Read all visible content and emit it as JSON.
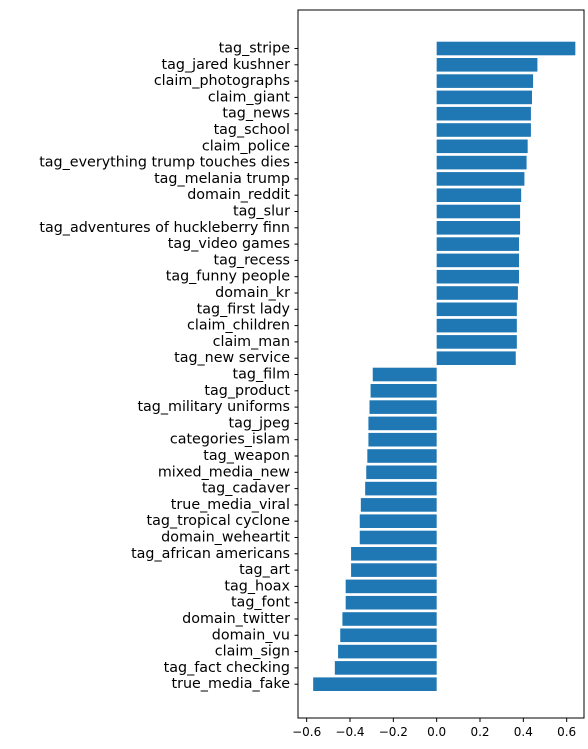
{
  "chart_data": {
    "type": "bar",
    "orientation": "horizontal",
    "title": "",
    "xlabel": "",
    "ylabel": "",
    "bar_color": "#1f77b4",
    "xlim": [
      -0.64,
      0.68
    ],
    "xticks": [
      -0.6,
      -0.4,
      -0.2,
      0.0,
      0.2,
      0.4,
      0.6
    ],
    "xtick_labels": [
      "−0.6",
      "−0.4",
      "−0.2",
      "0.0",
      "0.2",
      "0.4",
      "0.6"
    ],
    "grid": false,
    "legend": "none",
    "categories": [
      "tag_stripe",
      "tag_jared kushner",
      "claim_photographs",
      "claim_giant",
      "tag_news",
      "tag_school",
      "claim_police",
      "tag_everything trump touches dies",
      "tag_melania trump",
      "domain_reddit",
      "tag_slur",
      "tag_adventures of huckleberry finn",
      "tag_video games",
      "tag_recess",
      "tag_funny people",
      "domain_kr",
      "tag_first lady",
      "claim_children",
      "claim_man",
      "tag_new service",
      "tag_film",
      "tag_product",
      "tag_military uniforms",
      "tag_jpeg",
      "categories_islam",
      "tag_weapon",
      "mixed_media_new",
      "tag_cadaver",
      "true_media_viral",
      "tag_tropical cyclone",
      "domain_weheartit",
      "tag_african americans",
      "tag_art",
      "tag_hoax",
      "tag_font",
      "domain_twitter",
      "domain_vu",
      "claim_sign",
      "tag_fact checking",
      "true_media_fake"
    ],
    "values": [
      0.64,
      0.465,
      0.445,
      0.44,
      0.435,
      0.435,
      0.42,
      0.415,
      0.405,
      0.39,
      0.385,
      0.385,
      0.38,
      0.38,
      0.38,
      0.375,
      0.37,
      0.37,
      0.37,
      0.365,
      -0.295,
      -0.305,
      -0.31,
      -0.315,
      -0.315,
      -0.32,
      -0.325,
      -0.33,
      -0.35,
      -0.355,
      -0.355,
      -0.395,
      -0.395,
      -0.42,
      -0.42,
      -0.435,
      -0.445,
      -0.455,
      -0.47,
      -0.57
    ]
  }
}
